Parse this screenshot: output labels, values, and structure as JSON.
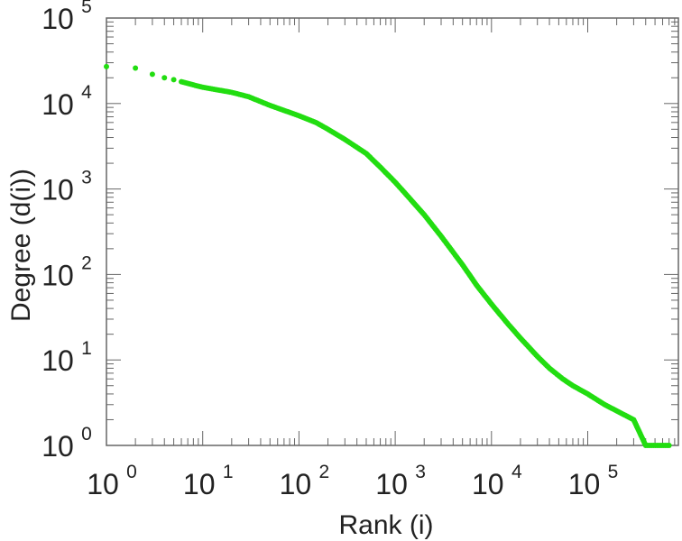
{
  "chart_data": {
    "type": "scatter",
    "title": "",
    "xlabel": "Rank (i)",
    "ylabel": "Degree (d(i))",
    "x_scale": "log",
    "y_scale": "log",
    "xlim": [
      1,
      700000
    ],
    "ylim": [
      1,
      100000
    ],
    "grid": false,
    "legend": "none",
    "marker_color": "#22dd11",
    "axis_color": "#666666",
    "x_ticks": [
      {
        "base": "10",
        "exp": "0"
      },
      {
        "base": "10",
        "exp": "1"
      },
      {
        "base": "10",
        "exp": "2"
      },
      {
        "base": "10",
        "exp": "3"
      },
      {
        "base": "10",
        "exp": "4"
      },
      {
        "base": "10",
        "exp": "5"
      }
    ],
    "y_ticks": [
      {
        "base": "10",
        "exp": "0"
      },
      {
        "base": "10",
        "exp": "1"
      },
      {
        "base": "10",
        "exp": "2"
      },
      {
        "base": "10",
        "exp": "3"
      },
      {
        "base": "10",
        "exp": "4"
      },
      {
        "base": "10",
        "exp": "5"
      }
    ],
    "points": [
      [
        1,
        27000
      ],
      [
        2,
        26000
      ],
      [
        3,
        22000
      ],
      [
        4,
        20000
      ],
      [
        5,
        19000
      ],
      [
        6,
        18000
      ],
      [
        8,
        16500
      ],
      [
        10,
        15500
      ],
      [
        15,
        14300
      ],
      [
        20,
        13500
      ],
      [
        30,
        12000
      ],
      [
        50,
        9500
      ],
      [
        70,
        8300
      ],
      [
        100,
        7200
      ],
      [
        150,
        6000
      ],
      [
        200,
        5000
      ],
      [
        300,
        3800
      ],
      [
        500,
        2600
      ],
      [
        700,
        1800
      ],
      [
        1000,
        1200
      ],
      [
        1500,
        720
      ],
      [
        2000,
        500
      ],
      [
        3000,
        280
      ],
      [
        5000,
        130
      ],
      [
        7000,
        75
      ],
      [
        10000,
        45
      ],
      [
        15000,
        26
      ],
      [
        20000,
        18
      ],
      [
        30000,
        11
      ],
      [
        40000,
        8
      ],
      [
        55000,
        6
      ],
      [
        70000,
        5
      ],
      [
        100000,
        4
      ],
      [
        150000,
        3
      ],
      [
        300000,
        2
      ],
      [
        400000,
        1
      ],
      [
        700000,
        1
      ]
    ]
  }
}
